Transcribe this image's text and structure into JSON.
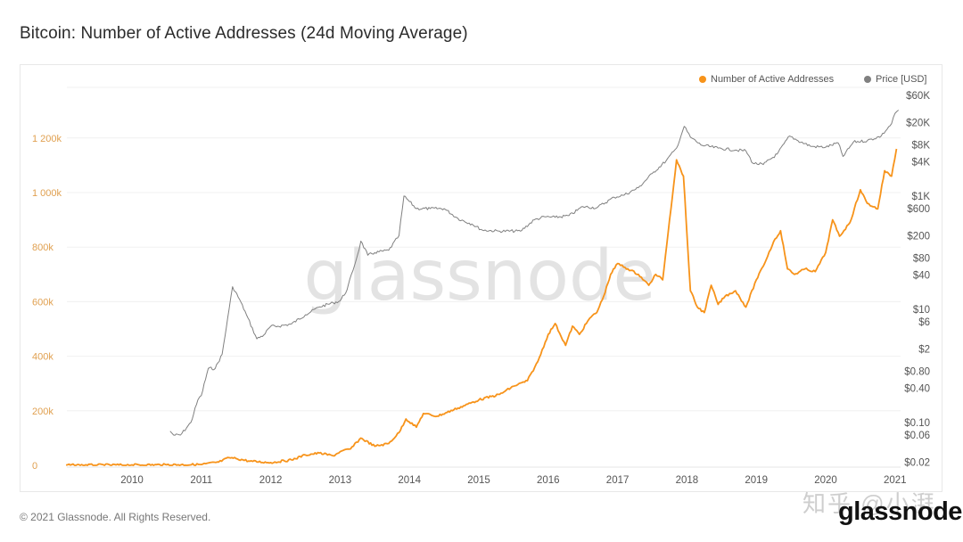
{
  "page": {
    "title": "Bitcoin: Number of Active Addresses (24d Moving Average)",
    "footer": "© 2021 Glassnode. All Rights Reserved.",
    "brand": "glassnode",
    "watermark": "glassnode",
    "zh_watermark": "知乎 @小湃"
  },
  "colors": {
    "addresses": "#f7931a",
    "price": "#808080",
    "left_axis_text": "#e0a050",
    "right_axis_text": "#555555",
    "grid": "#f0f0f0"
  },
  "chart_data": {
    "type": "line",
    "title": "Bitcoin: Number of Active Addresses (24d Moving Average)",
    "xlabel": "",
    "ylabel_left": "Number of Active Addresses",
    "ylabel_right": "Price [USD]",
    "grid": true,
    "legend_position": "top-right",
    "legend": [
      {
        "name": "Number of Active Addresses",
        "color": "#f7931a"
      },
      {
        "name": "Price [USD]",
        "color": "#808080"
      }
    ],
    "x_ticks": [
      "2010",
      "2011",
      "2012",
      "2013",
      "2014",
      "2015",
      "2016",
      "2017",
      "2018",
      "2019",
      "2020",
      "2021"
    ],
    "x_range": [
      2009.0,
      2021.05
    ],
    "y_left": {
      "scale": "linear",
      "range": [
        0,
        1300000
      ],
      "ticks": [
        0,
        200000,
        400000,
        600000,
        800000,
        1000000,
        1200000
      ],
      "tick_labels": [
        "0",
        "200k",
        "400k",
        "600k",
        "800k",
        "1 000k",
        "1 200k"
      ]
    },
    "y_right": {
      "scale": "log",
      "range": [
        0.018,
        60000
      ],
      "ticks": [
        60000,
        20000,
        8000,
        4000,
        1000,
        600,
        200,
        80,
        40,
        10,
        6,
        2,
        0.8,
        0.4,
        0.1,
        0.06,
        0.02
      ],
      "tick_labels": [
        "$60K",
        "$20K",
        "$8K",
        "$4K",
        "$1K",
        "$600",
        "$200",
        "$80",
        "$40",
        "$10",
        "$6",
        "$2",
        "$0.80",
        "$0.40",
        "$0.10",
        "$0.06",
        "$0.02"
      ]
    },
    "series": [
      {
        "name": "Number of Active Addresses",
        "axis": "left",
        "x": [
          2009.05,
          2009.5,
          2010.0,
          2010.5,
          2011.0,
          2011.25,
          2011.4,
          2011.5,
          2011.7,
          2012.0,
          2012.3,
          2012.5,
          2012.7,
          2012.9,
          2013.0,
          2013.15,
          2013.3,
          2013.5,
          2013.7,
          2013.85,
          2013.95,
          2014.1,
          2014.2,
          2014.4,
          2014.7,
          2015.0,
          2015.3,
          2015.5,
          2015.7,
          2015.85,
          2016.0,
          2016.1,
          2016.25,
          2016.35,
          2016.45,
          2016.55,
          2016.6,
          2016.7,
          2016.8,
          2016.9,
          2017.0,
          2017.15,
          2017.3,
          2017.45,
          2017.55,
          2017.65,
          2017.75,
          2017.85,
          2017.95,
          2018.05,
          2018.15,
          2018.25,
          2018.35,
          2018.45,
          2018.55,
          2018.7,
          2018.85,
          2019.0,
          2019.1,
          2019.25,
          2019.35,
          2019.45,
          2019.55,
          2019.7,
          2019.85,
          2020.0,
          2020.1,
          2020.2,
          2020.35,
          2020.5,
          2020.6,
          2020.75,
          2020.85,
          2020.95,
          2021.02
        ],
        "y": [
          1000,
          1000,
          1500,
          2000,
          3000,
          12000,
          28000,
          25000,
          15000,
          10000,
          20000,
          38000,
          45000,
          35000,
          50000,
          60000,
          100000,
          70000,
          80000,
          120000,
          170000,
          140000,
          190000,
          180000,
          210000,
          240000,
          260000,
          290000,
          310000,
          380000,
          480000,
          520000,
          440000,
          510000,
          480000,
          520000,
          540000,
          560000,
          620000,
          700000,
          740000,
          720000,
          700000,
          660000,
          700000,
          680000,
          900000,
          1120000,
          1060000,
          640000,
          580000,
          560000,
          660000,
          590000,
          620000,
          640000,
          580000,
          680000,
          730000,
          820000,
          860000,
          720000,
          700000,
          720000,
          710000,
          780000,
          900000,
          840000,
          890000,
          1010000,
          960000,
          940000,
          1080000,
          1060000,
          1160000
        ]
      },
      {
        "name": "Price [USD]",
        "axis": "right",
        "x": [
          2010.55,
          2010.6,
          2010.7,
          2010.85,
          2010.95,
          2011.0,
          2011.1,
          2011.2,
          2011.3,
          2011.4,
          2011.45,
          2011.55,
          2011.65,
          2011.8,
          2011.9,
          2012.0,
          2012.1,
          2012.3,
          2012.5,
          2012.7,
          2012.9,
          2013.0,
          2013.1,
          2013.25,
          2013.3,
          2013.4,
          2013.5,
          2013.7,
          2013.85,
          2013.92,
          2014.0,
          2014.1,
          2014.3,
          2014.5,
          2014.7,
          2014.9,
          2015.05,
          2015.3,
          2015.6,
          2015.8,
          2015.95,
          2016.1,
          2016.3,
          2016.5,
          2016.7,
          2016.95,
          2017.1,
          2017.3,
          2017.5,
          2017.7,
          2017.85,
          2017.96,
          2018.05,
          2018.2,
          2018.45,
          2018.7,
          2018.85,
          2018.95,
          2019.1,
          2019.3,
          2019.48,
          2019.6,
          2019.8,
          2020.0,
          2020.18,
          2020.25,
          2020.4,
          2020.6,
          2020.8,
          2020.95,
          2021.0,
          2021.05
        ],
        "y": [
          0.07,
          0.06,
          0.06,
          0.1,
          0.25,
          0.3,
          0.9,
          0.9,
          1.6,
          10,
          25,
          15,
          8,
          3,
          3.5,
          5,
          5,
          5.5,
          8,
          11,
          13,
          14,
          22,
          90,
          160,
          90,
          100,
          110,
          200,
          1000,
          800,
          600,
          600,
          600,
          400,
          320,
          250,
          240,
          240,
          380,
          430,
          420,
          450,
          650,
          620,
          950,
          1050,
          1400,
          2500,
          4200,
          7000,
          17000,
          11000,
          8000,
          7000,
          6500,
          6300,
          3800,
          3600,
          5500,
          11500,
          9500,
          7500,
          7300,
          8700,
          5000,
          9000,
          9500,
          11500,
          19000,
          29000,
          33000
        ]
      }
    ]
  }
}
